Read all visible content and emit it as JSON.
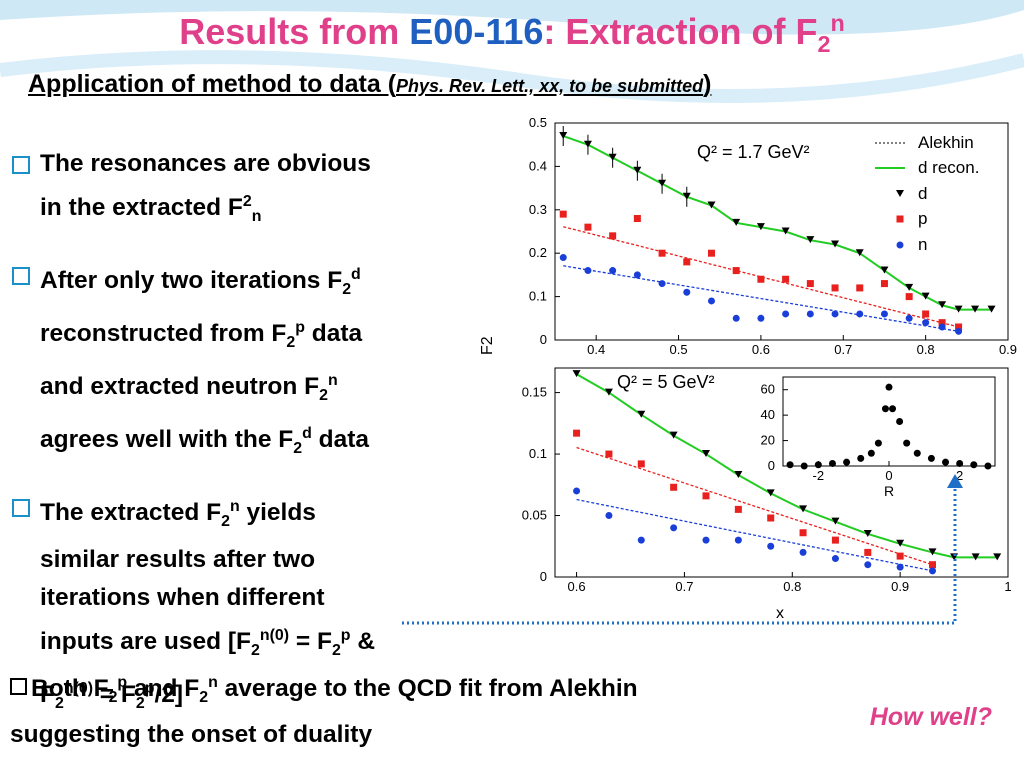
{
  "slide": {
    "title_pre": "Results from ",
    "title_code": "E00-116",
    "title_post": ": Extraction of F",
    "subtitle_main": "Application of method to data (",
    "subtitle_cite": "Phys. Rev. Lett., xx, to be submitted",
    "subtitle_close": ")",
    "how_well": "How well?"
  },
  "colors": {
    "title": "#e0408a",
    "code": "#1f5fbf",
    "bullet_box": "#1a8fc9",
    "d": "#000000",
    "p": "#e8201e",
    "n": "#1a3fd8",
    "recon": "#22cc22"
  },
  "chart_data": [
    {
      "type": "scatter",
      "annotation": "Q² = 1.7 GeV²",
      "ylabel": "F2",
      "xlim": [
        0.35,
        0.9
      ],
      "ylim": [
        0,
        0.5
      ],
      "xticks": [
        "0.4",
        "0.5",
        "0.6",
        "0.7",
        "0.8",
        "0.9"
      ],
      "yticks": [
        "0",
        "0.1",
        "0.2",
        "0.3",
        "0.4",
        "0.5"
      ],
      "legend": [
        "Alekhin",
        "d recon.",
        "d",
        "p",
        "n"
      ],
      "series": [
        {
          "name": "d",
          "x": [
            0.36,
            0.39,
            0.42,
            0.45,
            0.48,
            0.51,
            0.54,
            0.57,
            0.6,
            0.63,
            0.66,
            0.69,
            0.72,
            0.75,
            0.78,
            0.8,
            0.82,
            0.84,
            0.86,
            0.88
          ],
          "y": [
            0.47,
            0.45,
            0.42,
            0.39,
            0.36,
            0.33,
            0.31,
            0.27,
            0.26,
            0.25,
            0.23,
            0.22,
            0.2,
            0.16,
            0.12,
            0.1,
            0.08,
            0.07,
            0.07,
            0.07
          ]
        },
        {
          "name": "p",
          "x": [
            0.36,
            0.39,
            0.42,
            0.45,
            0.48,
            0.51,
            0.54,
            0.57,
            0.6,
            0.63,
            0.66,
            0.69,
            0.72,
            0.75,
            0.78,
            0.8,
            0.82,
            0.84
          ],
          "y": [
            0.29,
            0.26,
            0.24,
            0.28,
            0.2,
            0.18,
            0.2,
            0.16,
            0.14,
            0.14,
            0.13,
            0.12,
            0.12,
            0.13,
            0.1,
            0.06,
            0.04,
            0.03
          ]
        },
        {
          "name": "n",
          "x": [
            0.36,
            0.39,
            0.42,
            0.45,
            0.48,
            0.51,
            0.54,
            0.57,
            0.6,
            0.63,
            0.66,
            0.69,
            0.72,
            0.75,
            0.78,
            0.8,
            0.82,
            0.84
          ],
          "y": [
            0.19,
            0.16,
            0.16,
            0.15,
            0.13,
            0.11,
            0.09,
            0.05,
            0.05,
            0.06,
            0.06,
            0.06,
            0.06,
            0.06,
            0.05,
            0.04,
            0.03,
            0.02
          ]
        }
      ]
    },
    {
      "type": "scatter",
      "annotation": "Q² = 5 GeV²",
      "xlabel": "x",
      "xlim": [
        0.58,
        1.0
      ],
      "ylim": [
        0,
        0.17
      ],
      "xticks": [
        "0.6",
        "0.7",
        "0.8",
        "0.9",
        "1"
      ],
      "yticks": [
        "0",
        "0.05",
        "0.1",
        "0.15"
      ],
      "series": [
        {
          "name": "d",
          "x": [
            0.6,
            0.63,
            0.66,
            0.69,
            0.72,
            0.75,
            0.78,
            0.81,
            0.84,
            0.87,
            0.9,
            0.93,
            0.95,
            0.97,
            0.99
          ],
          "y": [
            0.165,
            0.15,
            0.132,
            0.115,
            0.1,
            0.083,
            0.068,
            0.055,
            0.045,
            0.035,
            0.027,
            0.02,
            0.016,
            0.016,
            0.016
          ]
        },
        {
          "name": "p",
          "x": [
            0.6,
            0.63,
            0.66,
            0.69,
            0.72,
            0.75,
            0.78,
            0.81,
            0.84,
            0.87,
            0.9,
            0.93
          ],
          "y": [
            0.117,
            0.1,
            0.092,
            0.073,
            0.066,
            0.055,
            0.048,
            0.036,
            0.03,
            0.02,
            0.017,
            0.01
          ]
        },
        {
          "name": "n",
          "x": [
            0.6,
            0.63,
            0.66,
            0.69,
            0.72,
            0.75,
            0.78,
            0.81,
            0.84,
            0.87,
            0.9,
            0.93
          ],
          "y": [
            0.07,
            0.05,
            0.03,
            0.04,
            0.03,
            0.03,
            0.025,
            0.02,
            0.015,
            0.01,
            0.008,
            0.005
          ]
        }
      ]
    },
    {
      "type": "scatter",
      "inset": true,
      "xlabel": "R",
      "xlim": [
        -3,
        3
      ],
      "ylim": [
        0,
        70
      ],
      "xticks": [
        "-2",
        "0",
        "2"
      ],
      "yticks": [
        "0",
        "20",
        "40",
        "60"
      ],
      "series": [
        {
          "name": "R",
          "x": [
            -2.8,
            -2.4,
            -2,
            -1.6,
            -1.2,
            -0.8,
            -0.5,
            -0.3,
            -0.1,
            0,
            0.1,
            0.3,
            0.5,
            0.8,
            1.2,
            1.6,
            2,
            2.4,
            2.8
          ],
          "y": [
            1,
            0,
            1,
            2,
            3,
            6,
            10,
            18,
            45,
            62,
            45,
            35,
            18,
            10,
            6,
            3,
            2,
            1,
            0
          ]
        }
      ]
    }
  ],
  "bullets": [
    {
      "l1a": "The resonances are obvious",
      "l2a": "in the extracted F",
      "l2sup": "2",
      "l2sub": "n"
    },
    {
      "l1a": "After only two iterations F",
      "l1sub": "2",
      "l1sup": "d",
      "l2a": "reconstructed from F",
      "l2sub": "2",
      "l2sup": "p",
      "l2b": " data",
      "l3a": "and extracted neutron F",
      "l3sub": "2",
      "l3sup": "n",
      "l4a": "agrees well with the F",
      "l4sub": "2",
      "l4sup": "d",
      "l4b": " data"
    },
    {
      "l1a": "The extracted F",
      "l1sub": "2",
      "l1sup": "n",
      "l1b": " yields",
      "l2": "similar results after two",
      "l3": "iterations when different",
      "l4a": "inputs are used [F",
      "l4sub": "2",
      "l4sup": "n(0)",
      "l4b": " = F",
      "l4sub2": "2",
      "l4sup2": "p",
      "l4c": " &",
      "l5a": "F",
      "l5sub": "2",
      "l5sup": "n(0)",
      "l5b": " = F",
      "l5sub2": "2",
      "l5sup2": "p",
      "l5c": "/2]"
    }
  ],
  "bottom": {
    "a": "Both F",
    "sub1": "2",
    "sup1": "p",
    "b": " and F",
    "sub2": "2",
    "sup2": "n",
    "c": " average to the QCD fit from Alekhin",
    "line2": "suggesting the onset of duality"
  }
}
